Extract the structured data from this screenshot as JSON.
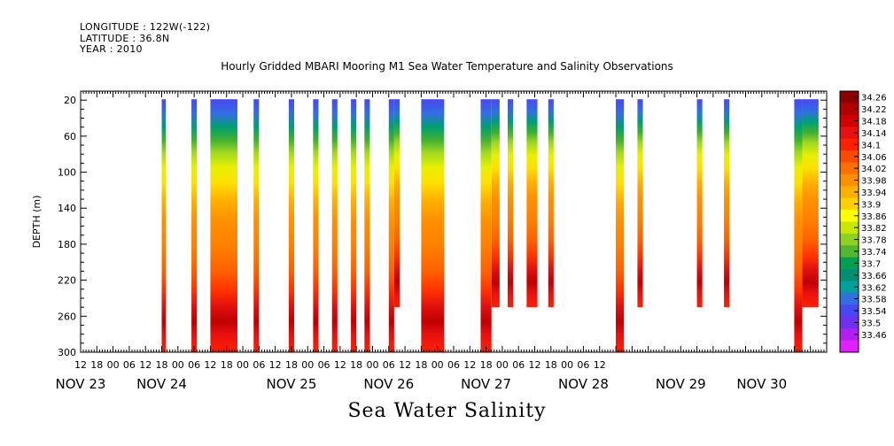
{
  "header": {
    "longitude": "LONGITUDE : 122W(-122)",
    "latitude": "LATITUDE : 36.8N",
    "year": "YEAR : 2010"
  },
  "title": "Hourly Gridded MBARI Mooring M1 Sea Water Temperature and Salinity Observations",
  "caption": "Sea Water Salinity",
  "chart_data": {
    "type": "heatmap",
    "title": "Hourly Gridded MBARI Mooring M1 Sea Water Temperature and Salinity Observations",
    "xlabel": "",
    "ylabel": "DEPTH (m)",
    "y_ticks": [
      20,
      60,
      100,
      140,
      180,
      220,
      260,
      300
    ],
    "y_range": [
      300,
      10
    ],
    "x_range_hours": [
      0,
      276
    ],
    "x_hour_labels": [
      "12",
      "18",
      "00",
      "06",
      "12",
      "18",
      "00",
      "06",
      "12",
      "18",
      "00",
      "06",
      "12",
      "18",
      "00",
      "06",
      "12",
      "18",
      "00",
      "06",
      "12",
      "18",
      "00",
      "06",
      "12",
      "18",
      "00",
      "06",
      "12",
      "18",
      "00",
      "06",
      "12"
    ],
    "x_day_labels": [
      {
        "label": "NOV 23",
        "hour": 0
      },
      {
        "label": "NOV 24",
        "hour": 30
      },
      {
        "label": "NOV 25",
        "hour": 78
      },
      {
        "label": "NOV 26",
        "hour": 114
      },
      {
        "label": "NOV 27",
        "hour": 150
      },
      {
        "label": "NOV 28",
        "hour": 186
      },
      {
        "label": "NOV 29",
        "hour": 222
      },
      {
        "label": "NOV 30",
        "hour": 252
      }
    ],
    "colorbar": {
      "levels": [
        "34.26",
        "34.22",
        "34.18",
        "34.14",
        "34.1",
        "34.06",
        "34.02",
        "33.98",
        "33.94",
        "33.9",
        "33.86",
        "33.82",
        "33.78",
        "33.74",
        "33.7",
        "33.66",
        "33.62",
        "33.58",
        "33.54",
        "33.5",
        "33.46"
      ],
      "colors": [
        "#8b0000",
        "#b00000",
        "#d00000",
        "#e81010",
        "#ff2000",
        "#ff4a00",
        "#ff7000",
        "#ff9000",
        "#ffb000",
        "#ffd000",
        "#ffff00",
        "#c8e800",
        "#90d020",
        "#50b830",
        "#00a050",
        "#009070",
        "#00a0a0",
        "#3070e0",
        "#4848f0",
        "#7030f0",
        "#b020f0",
        "#e020ff"
      ]
    },
    "observations": [
      {
        "start": 30,
        "end": 31.5,
        "depth_to": 300
      },
      {
        "start": 41,
        "end": 43,
        "depth_to": 300
      },
      {
        "start": 48,
        "end": 58,
        "depth_to": 300
      },
      {
        "start": 64,
        "end": 66,
        "depth_to": 300
      },
      {
        "start": 77,
        "end": 79,
        "depth_to": 300
      },
      {
        "start": 86,
        "end": 88,
        "depth_to": 300
      },
      {
        "start": 93,
        "end": 95,
        "depth_to": 300
      },
      {
        "start": 100,
        "end": 102,
        "depth_to": 300
      },
      {
        "start": 105,
        "end": 107,
        "depth_to": 300
      },
      {
        "start": 114,
        "end": 116,
        "depth_to": 300
      },
      {
        "start": 116,
        "end": 118,
        "depth_to": 250
      },
      {
        "start": 126,
        "end": 134.5,
        "depth_to": 300
      },
      {
        "start": 148,
        "end": 152,
        "depth_to": 300
      },
      {
        "start": 152,
        "end": 155,
        "depth_to": 250
      },
      {
        "start": 158,
        "end": 160,
        "depth_to": 250
      },
      {
        "start": 165,
        "end": 169,
        "depth_to": 250
      },
      {
        "start": 173,
        "end": 175,
        "depth_to": 250
      },
      {
        "start": 198,
        "end": 201,
        "depth_to": 300
      },
      {
        "start": 206,
        "end": 208,
        "depth_to": 250
      },
      {
        "start": 228,
        "end": 230,
        "depth_to": 250
      },
      {
        "start": 238,
        "end": 240,
        "depth_to": 250
      },
      {
        "start": 264,
        "end": 267,
        "depth_to": 300
      },
      {
        "start": 267,
        "end": 273,
        "depth_to": 250
      }
    ]
  }
}
